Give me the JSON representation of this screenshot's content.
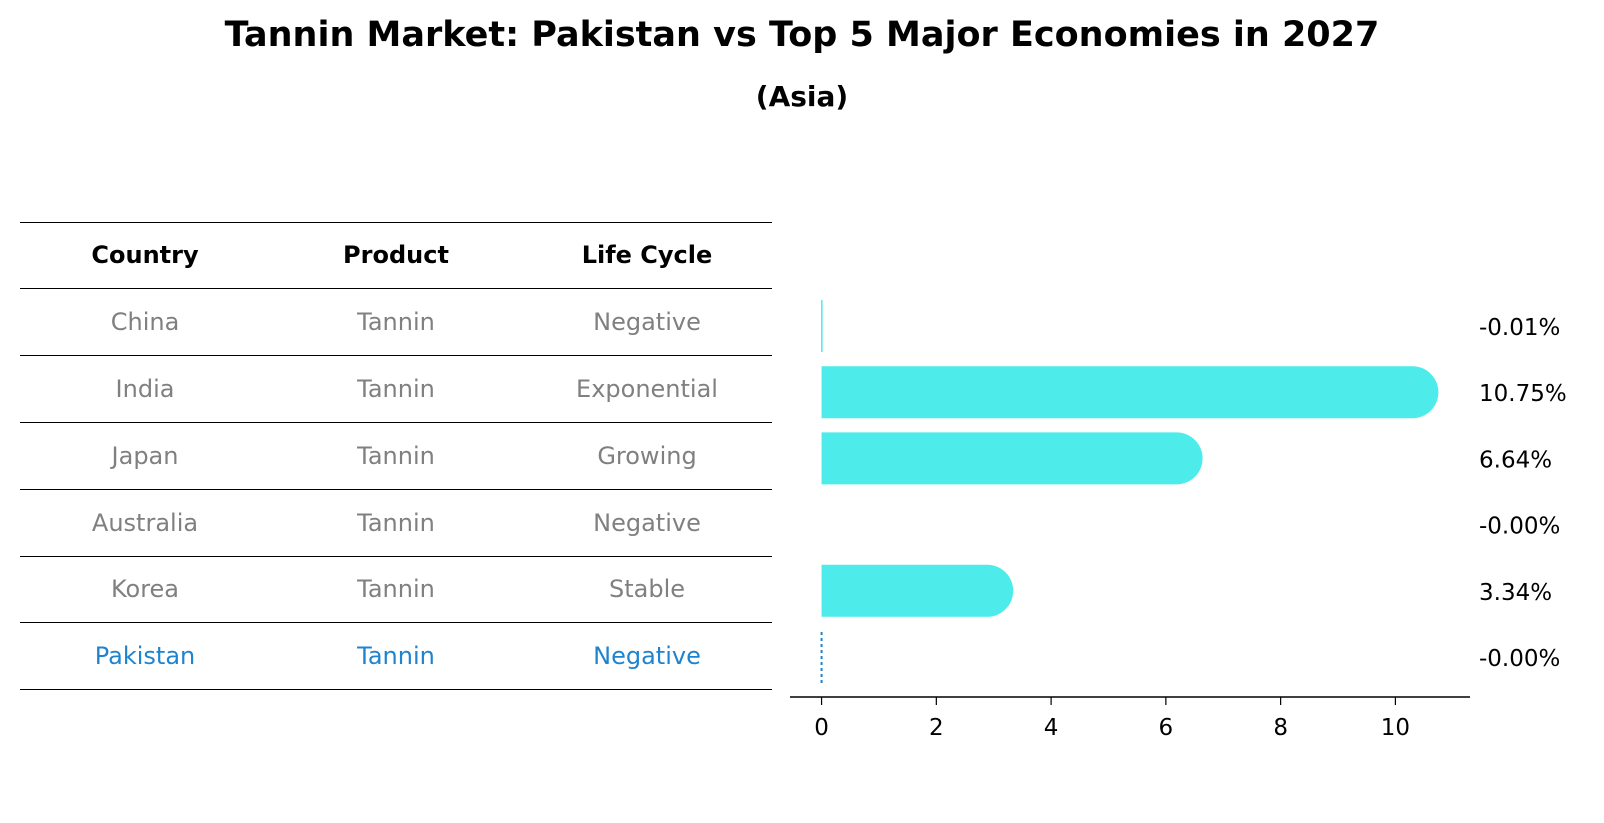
{
  "title": "Tannin Market: Pakistan vs Top 5 Major Economies in 2027",
  "subtitle": "(Asia)",
  "table": {
    "headers": [
      "Country",
      "Product",
      "Life Cycle"
    ],
    "rows": [
      {
        "country": "China",
        "product": "Tannin",
        "life_cycle": "Negative",
        "highlight": false
      },
      {
        "country": "India",
        "product": "Tannin",
        "life_cycle": "Exponential",
        "highlight": false
      },
      {
        "country": "Japan",
        "product": "Tannin",
        "life_cycle": "Growing",
        "highlight": false
      },
      {
        "country": "Australia",
        "product": "Tannin",
        "life_cycle": "Negative",
        "highlight": false
      },
      {
        "country": "Korea",
        "product": "Tannin",
        "life_cycle": "Stable",
        "highlight": false
      },
      {
        "country": "Pakistan",
        "product": "Tannin",
        "life_cycle": "Negative",
        "highlight": true
      }
    ]
  },
  "colors": {
    "bar": "#4deceb",
    "highlight": "#1f84d0",
    "muted_text": "#808080"
  },
  "chart_data": {
    "type": "bar",
    "orientation": "horizontal",
    "categories": [
      "China",
      "India",
      "Japan",
      "Australia",
      "Korea",
      "Pakistan"
    ],
    "values": [
      -0.01,
      10.75,
      6.64,
      -0.0,
      3.34,
      -0.0
    ],
    "value_labels": [
      "-0.01%",
      "10.75%",
      "6.64%",
      "-0.00%",
      "3.34%",
      "-0.00%"
    ],
    "xlim": [
      -0.55,
      11.3
    ],
    "xticks": [
      0,
      2,
      4,
      6,
      8,
      10
    ],
    "grid": false,
    "highlight_category": "Pakistan"
  }
}
